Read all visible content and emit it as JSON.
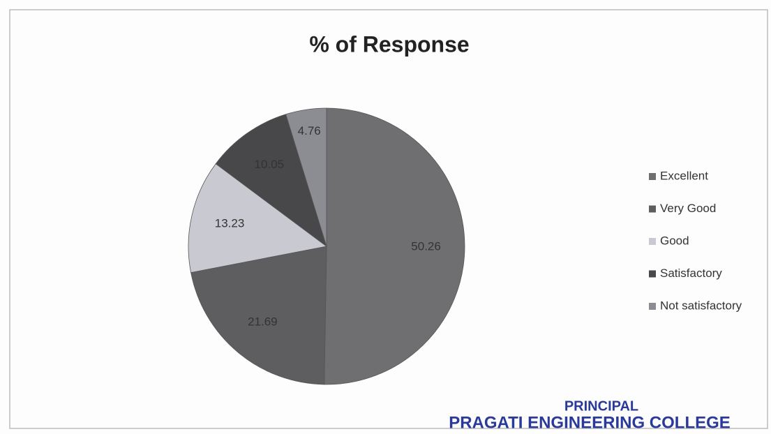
{
  "chart_data": {
    "type": "pie",
    "title": "% of Response",
    "categories": [
      "Excellent",
      "Very Good",
      "Good",
      "Satisfactory",
      "Not satisfactory"
    ],
    "values": [
      50.26,
      21.69,
      13.23,
      10.05,
      4.76
    ],
    "colors": [
      "#6f6f72",
      "#5e5e60",
      "#c9c9d1",
      "#48484a",
      "#8c8c93"
    ],
    "legend": "right",
    "annotations": [
      "PRINCIPAL",
      "PRAGATI ENGINEERING COLLEGE"
    ]
  }
}
